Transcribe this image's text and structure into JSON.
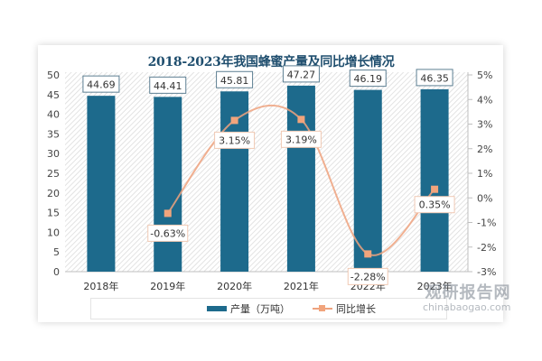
{
  "chart_data": {
    "type": "bar+line",
    "title": "2018-2023年我国蜂蜜产量及同比增长情况",
    "categories": [
      "2018年",
      "2019年",
      "2020年",
      "2021年",
      "2022年",
      "2023年"
    ],
    "series": [
      {
        "name": "产量（万吨）",
        "type": "bar",
        "axis": "left",
        "color": "#1d6a8c",
        "values": [
          44.69,
          44.41,
          45.81,
          47.27,
          46.19,
          46.35
        ],
        "labels": [
          "44.69",
          "44.41",
          "45.81",
          "47.27",
          "46.19",
          "46.35"
        ]
      },
      {
        "name": "同比增长",
        "type": "line",
        "axis": "right",
        "color": "#eea27e",
        "values": [
          null,
          -0.63,
          3.15,
          3.19,
          -2.28,
          0.35
        ],
        "labels": [
          "",
          "-0.63%",
          "3.15%",
          "3.19%",
          "-2.28%",
          "0.35%"
        ]
      }
    ],
    "left_axis": {
      "min": 0,
      "max": 50,
      "ticks": [
        "0",
        "5",
        "10",
        "15",
        "20",
        "25",
        "30",
        "35",
        "40",
        "45",
        "50"
      ]
    },
    "right_axis": {
      "min": -3,
      "max": 5,
      "ticks": [
        "-3%",
        "-2%",
        "-1%",
        "0%",
        "1%",
        "2%",
        "3%",
        "4%",
        "5%"
      ]
    },
    "legend_position": "bottom"
  },
  "legend": {
    "bar_label": "产量（万吨）",
    "line_label": "同比增长"
  },
  "watermark": {
    "cn": "观研报告网",
    "en": "chinabaogao.com"
  }
}
